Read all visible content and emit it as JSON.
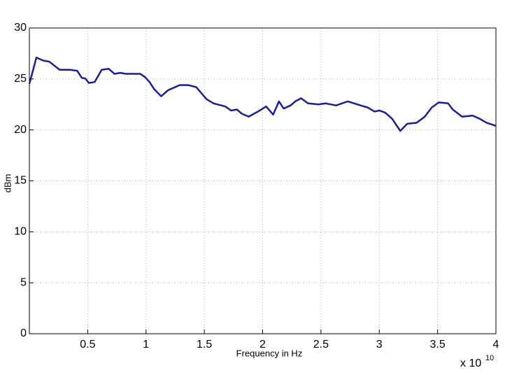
{
  "chart_data": {
    "type": "line",
    "x_label": "Frequency in Hz",
    "y_label": "dBm",
    "x_exponent_base": "x 10",
    "x_exponent": "10",
    "x": [
      0,
      0.06,
      0.12,
      0.17,
      0.26,
      0.35,
      0.41,
      0.45,
      0.48,
      0.51,
      0.56,
      0.62,
      0.68,
      0.73,
      0.78,
      0.83,
      0.88,
      0.95,
      0.99,
      1.03,
      1.07,
      1.13,
      1.19,
      1.29,
      1.36,
      1.43,
      1.52,
      1.58,
      1.68,
      1.73,
      1.78,
      1.82,
      1.88,
      1.96,
      2.03,
      2.09,
      2.14,
      2.18,
      2.24,
      2.28,
      2.33,
      2.39,
      2.48,
      2.54,
      2.63,
      2.73,
      2.84,
      2.9,
      2.96,
      3.0,
      3.05,
      3.11,
      3.18,
      3.24,
      3.32,
      3.39,
      3.45,
      3.51,
      3.59,
      3.63,
      3.71,
      3.8,
      3.86,
      3.92,
      4.0
    ],
    "series": [
      {
        "color": "#1c1c9c",
        "values": [
          24.5,
          27.1,
          26.8,
          26.7,
          25.9,
          25.9,
          25.8,
          25.1,
          25.05,
          24.6,
          24.7,
          25.9,
          26.0,
          25.5,
          25.6,
          25.5,
          25.5,
          25.5,
          25.2,
          24.7,
          24.0,
          23.3,
          23.9,
          24.4,
          24.4,
          24.2,
          23.0,
          22.6,
          22.3,
          21.9,
          22.0,
          21.6,
          21.3,
          21.8,
          22.3,
          21.5,
          22.8,
          22.1,
          22.4,
          22.8,
          23.1,
          22.6,
          22.5,
          22.6,
          22.4,
          22.8,
          22.4,
          22.2,
          21.8,
          21.9,
          21.7,
          21.1,
          19.9,
          20.6,
          20.7,
          21.3,
          22.2,
          22.7,
          22.6,
          22.0,
          21.3,
          21.4,
          21.1,
          20.7,
          20.4
        ]
      }
    ],
    "xlim": [
      0,
      4
    ],
    "xticks": [
      0.5,
      1,
      1.5,
      2,
      2.5,
      3,
      3.5,
      4
    ],
    "ylim": [
      0,
      30
    ],
    "yticks": [
      0,
      5,
      10,
      15,
      20,
      25,
      30
    ],
    "grid": true
  }
}
